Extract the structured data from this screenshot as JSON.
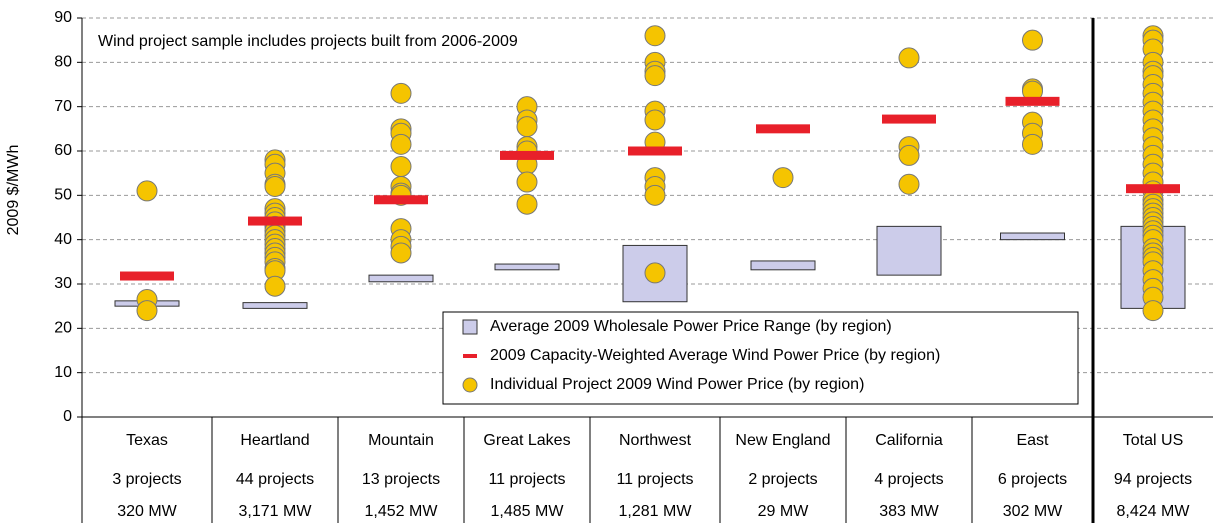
{
  "chart_data": {
    "type": "range-dot",
    "y_label": "2009 $/MWh",
    "annotation": "Wind project sample includes projects built from 2006-2009",
    "categories": [
      "Texas",
      "Heartland",
      "Mountain",
      "Great Lakes",
      "Northwest",
      "New England",
      "California",
      "East",
      "Total US"
    ],
    "projects": [
      "3 projects",
      "44 projects",
      "13 projects",
      "11 projects",
      "11 projects",
      "2 projects",
      "4 projects",
      "6 projects",
      "94 projects"
    ],
    "capacity": [
      "320 MW",
      "3,171 MW",
      "1,452 MW",
      "1,485 MW",
      "1,281 MW",
      "29 MW",
      "383 MW",
      "302 MW",
      "8,424 MW"
    ],
    "ylim": [
      0,
      90
    ],
    "yticks": [
      0,
      10,
      20,
      30,
      40,
      50,
      60,
      70,
      80,
      90
    ],
    "grid": true,
    "legend": "lower right",
    "series": [
      {
        "name": "Average 2009 Wholesale Power Price Range (by region)",
        "color": "#ccccea",
        "low": [
          25,
          24.5,
          30.5,
          33.2,
          26,
          33.2,
          32,
          40,
          24.5
        ],
        "high": [
          26.2,
          25.8,
          32,
          34.5,
          38.7,
          35.2,
          43,
          41.5,
          43
        ]
      },
      {
        "name": "2009 Capacity-Weighted Average Wind Power Price (by region)",
        "color": "#e8202a",
        "values": [
          31.8,
          44.2,
          49,
          59,
          60,
          65,
          67.2,
          71.2,
          51.5
        ]
      },
      {
        "name": "Individual Project 2009 Wind Power Price (by region)",
        "color": "#f5c400",
        "values": [
          [
            51,
            26.5,
            24
          ],
          [
            58,
            57,
            55,
            52.5,
            52,
            47,
            46,
            45,
            44,
            43,
            42,
            41,
            40,
            39,
            38,
            37,
            36,
            35,
            33.5,
            33,
            29.5
          ],
          [
            73,
            65,
            64,
            61.5,
            56.5,
            52,
            50.5,
            50,
            42.5,
            40,
            38.5,
            37
          ],
          [
            70,
            67,
            65.5,
            61,
            60,
            57,
            53,
            48
          ],
          [
            86,
            80,
            78,
            77,
            69,
            67,
            62,
            54,
            52,
            50,
            32.5
          ],
          [
            54
          ],
          [
            81,
            61,
            59,
            52.5
          ],
          [
            85,
            74,
            73.5,
            66.5,
            64,
            61.5
          ],
          [
            86,
            85,
            83,
            80,
            78,
            77,
            75,
            73,
            71,
            69,
            67,
            65,
            63,
            61,
            59,
            57,
            55,
            53,
            51,
            49,
            48,
            47,
            46,
            45,
            44,
            43,
            42,
            41,
            40,
            38,
            37,
            36,
            35,
            33,
            31,
            29,
            27,
            24
          ]
        ]
      }
    ]
  }
}
